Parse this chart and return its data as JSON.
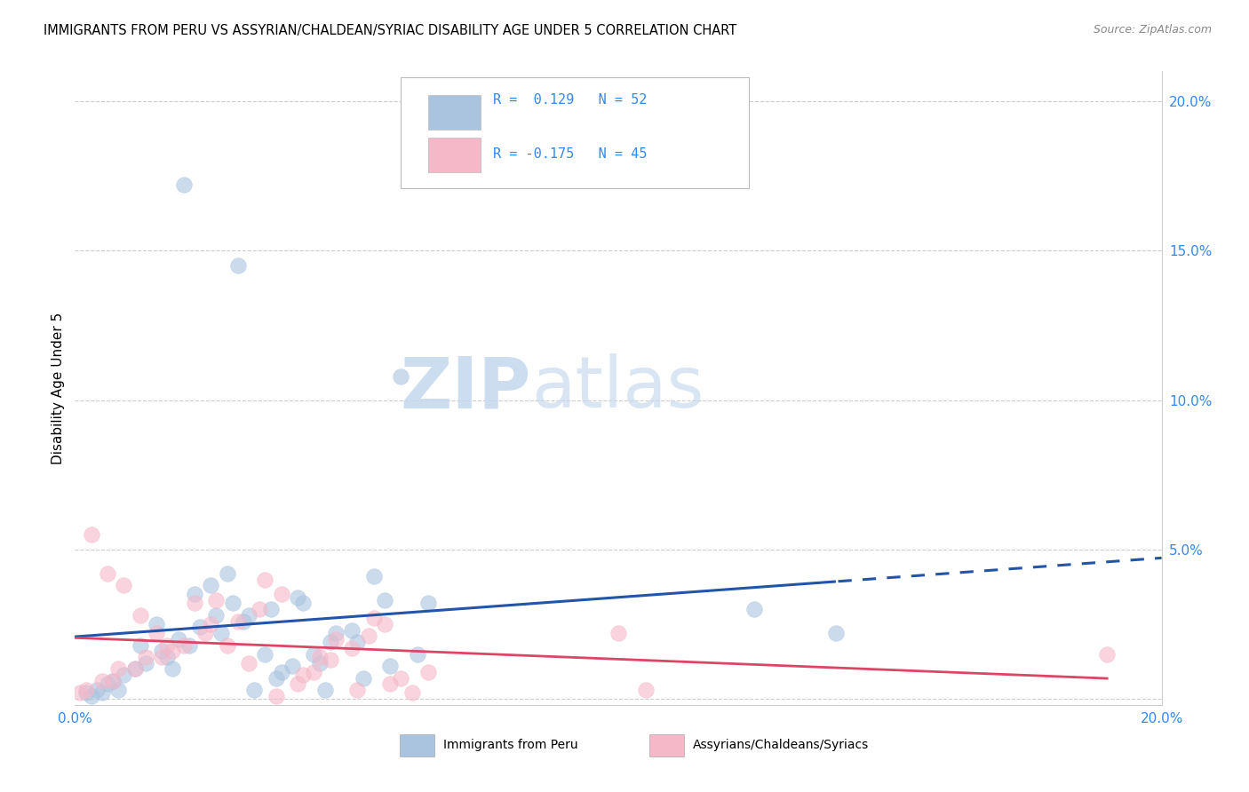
{
  "title": "IMMIGRANTS FROM PERU VS ASSYRIAN/CHALDEAN/SYRIAC DISABILITY AGE UNDER 5 CORRELATION CHART",
  "source": "Source: ZipAtlas.com",
  "ylabel": "Disability Age Under 5",
  "xlim": [
    0.0,
    0.2
  ],
  "ylim": [
    -0.002,
    0.21
  ],
  "blue_color": "#aac4e0",
  "pink_color": "#f5b8c8",
  "blue_line_color": "#2255aa",
  "pink_line_color": "#dd4466",
  "watermark_zip": "ZIP",
  "watermark_atlas": "atlas",
  "blue_scatter_x": [
    0.02,
    0.03,
    0.005,
    0.008,
    0.012,
    0.015,
    0.018,
    0.022,
    0.025,
    0.028,
    0.032,
    0.035,
    0.038,
    0.042,
    0.045,
    0.048,
    0.052,
    0.055,
    0.06,
    0.065,
    0.003,
    0.006,
    0.009,
    0.013,
    0.016,
    0.019,
    0.023,
    0.026,
    0.029,
    0.033,
    0.037,
    0.04,
    0.044,
    0.047,
    0.051,
    0.002,
    0.007,
    0.011,
    0.017,
    0.021,
    0.027,
    0.031,
    0.036,
    0.041,
    0.046,
    0.053,
    0.058,
    0.063,
    0.125,
    0.14,
    0.004,
    0.057
  ],
  "blue_scatter_y": [
    0.172,
    0.145,
    0.002,
    0.003,
    0.018,
    0.025,
    0.01,
    0.035,
    0.038,
    0.042,
    0.028,
    0.015,
    0.009,
    0.032,
    0.012,
    0.022,
    0.019,
    0.041,
    0.108,
    0.032,
    0.001,
    0.005,
    0.008,
    0.012,
    0.016,
    0.02,
    0.024,
    0.028,
    0.032,
    0.003,
    0.007,
    0.011,
    0.015,
    0.019,
    0.023,
    0.002,
    0.006,
    0.01,
    0.014,
    0.018,
    0.022,
    0.026,
    0.03,
    0.034,
    0.003,
    0.007,
    0.011,
    0.015,
    0.03,
    0.022,
    0.003,
    0.033
  ],
  "pink_scatter_x": [
    0.003,
    0.006,
    0.009,
    0.012,
    0.015,
    0.018,
    0.022,
    0.025,
    0.028,
    0.032,
    0.035,
    0.038,
    0.042,
    0.045,
    0.048,
    0.052,
    0.055,
    0.058,
    0.062,
    0.065,
    0.002,
    0.007,
    0.011,
    0.016,
    0.02,
    0.024,
    0.03,
    0.034,
    0.037,
    0.041,
    0.044,
    0.047,
    0.051,
    0.054,
    0.057,
    0.001,
    0.005,
    0.008,
    0.013,
    0.017,
    0.1,
    0.105,
    0.19,
    0.06,
    0.026
  ],
  "pink_scatter_y": [
    0.055,
    0.042,
    0.038,
    0.028,
    0.022,
    0.016,
    0.032,
    0.025,
    0.018,
    0.012,
    0.04,
    0.035,
    0.008,
    0.014,
    0.02,
    0.003,
    0.027,
    0.005,
    0.002,
    0.009,
    0.003,
    0.006,
    0.01,
    0.014,
    0.018,
    0.022,
    0.026,
    0.03,
    0.001,
    0.005,
    0.009,
    0.013,
    0.017,
    0.021,
    0.025,
    0.002,
    0.006,
    0.01,
    0.014,
    0.018,
    0.022,
    0.003,
    0.015,
    0.007,
    0.033
  ]
}
